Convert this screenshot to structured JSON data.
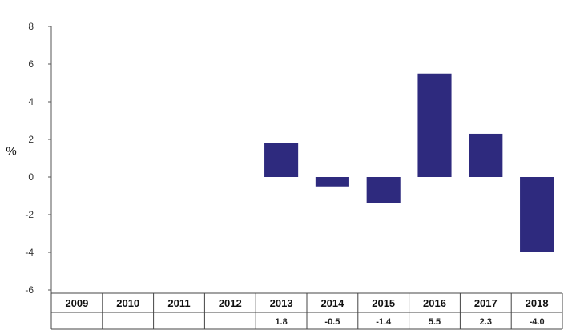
{
  "chart_data": {
    "type": "bar",
    "title": "",
    "xlabel": "",
    "ylabel": "%",
    "ylim": [
      -6,
      8
    ],
    "yticks": [
      8,
      6,
      4,
      2,
      0,
      -2,
      -4,
      -6
    ],
    "categories": [
      "2009",
      "2010",
      "2011",
      "2012",
      "2013",
      "2014",
      "2015",
      "2016",
      "2017",
      "2018"
    ],
    "values": [
      null,
      null,
      null,
      null,
      1.8,
      -0.5,
      -1.4,
      5.5,
      2.3,
      -4.0
    ],
    "value_labels": [
      "",
      "",
      "",
      "",
      "1.8",
      "-0.5",
      "-1.4",
      "5.5",
      "2.3",
      "-4.0"
    ],
    "grid": false,
    "legend": "none",
    "colors": {
      "bar": "#2e2a7e",
      "axis": "#555555",
      "table_border": "#444444"
    },
    "data_table": true
  }
}
